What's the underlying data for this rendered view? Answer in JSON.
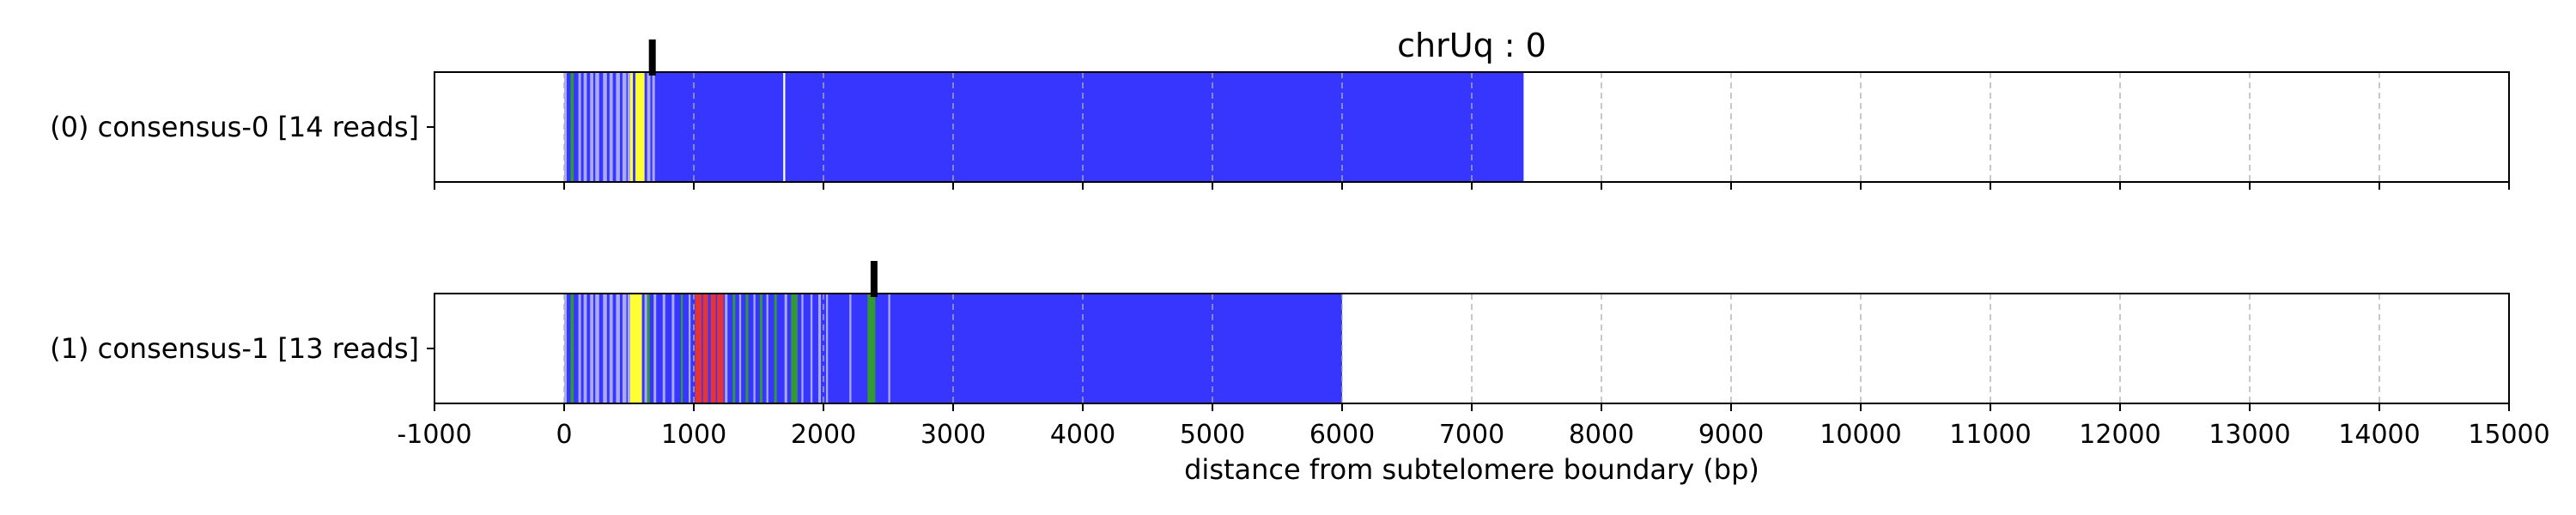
{
  "chart_data": {
    "type": "bar",
    "title": "chrUq : 0",
    "xlabel": "distance from subtelomere boundary (bp)",
    "ylabel": "",
    "xlim": [
      -1000,
      15000
    ],
    "x_ticks": [
      -1000,
      0,
      1000,
      2000,
      3000,
      4000,
      5000,
      6000,
      7000,
      8000,
      9000,
      10000,
      11000,
      12000,
      13000,
      14000,
      15000
    ],
    "x_tick_labels": [
      "-1000",
      "0",
      "1000",
      "2000",
      "3000",
      "4000",
      "5000",
      "6000",
      "7000",
      "8000",
      "9000",
      "10000",
      "11000",
      "12000",
      "13000",
      "14000",
      "15000"
    ],
    "grid": "vertical dashed",
    "colors": {
      "blue": "#3636ff",
      "light": "#a9a9ff",
      "yellow": "#ffff33",
      "red": "#e63333",
      "green": "#339933",
      "white": "#ffffff",
      "marker": "#000000"
    },
    "tracks": [
      {
        "label": "(0) consensus-0 [14 reads]",
        "start": 0,
        "end": 7400,
        "marker_bp": 680,
        "segments": [
          {
            "start": 0,
            "end": 20,
            "color": "light"
          },
          {
            "start": 20,
            "end": 50,
            "color": "blue"
          },
          {
            "start": 50,
            "end": 75,
            "color": "green"
          },
          {
            "start": 75,
            "end": 110,
            "color": "blue"
          },
          {
            "start": 110,
            "end": 130,
            "color": "light"
          },
          {
            "start": 150,
            "end": 175,
            "color": "light"
          },
          {
            "start": 200,
            "end": 225,
            "color": "light"
          },
          {
            "start": 240,
            "end": 270,
            "color": "light"
          },
          {
            "start": 300,
            "end": 330,
            "color": "light"
          },
          {
            "start": 350,
            "end": 375,
            "color": "light"
          },
          {
            "start": 400,
            "end": 430,
            "color": "light"
          },
          {
            "start": 450,
            "end": 480,
            "color": "light"
          },
          {
            "start": 490,
            "end": 510,
            "color": "light"
          },
          {
            "start": 510,
            "end": 530,
            "color": "yellow"
          },
          {
            "start": 550,
            "end": 620,
            "color": "yellow"
          },
          {
            "start": 640,
            "end": 665,
            "color": "light"
          },
          {
            "start": 680,
            "end": 700,
            "color": "light"
          },
          {
            "start": 1690,
            "end": 1705,
            "color": "white"
          }
        ]
      },
      {
        "label": "(1) consensus-1 [13 reads]",
        "start": 0,
        "end": 6000,
        "marker_bp": 2390,
        "segments": [
          {
            "start": 0,
            "end": 20,
            "color": "light"
          },
          {
            "start": 20,
            "end": 50,
            "color": "blue"
          },
          {
            "start": 50,
            "end": 75,
            "color": "green"
          },
          {
            "start": 75,
            "end": 110,
            "color": "blue"
          },
          {
            "start": 110,
            "end": 130,
            "color": "light"
          },
          {
            "start": 150,
            "end": 175,
            "color": "light"
          },
          {
            "start": 200,
            "end": 225,
            "color": "light"
          },
          {
            "start": 240,
            "end": 270,
            "color": "light"
          },
          {
            "start": 300,
            "end": 330,
            "color": "light"
          },
          {
            "start": 350,
            "end": 375,
            "color": "light"
          },
          {
            "start": 400,
            "end": 430,
            "color": "light"
          },
          {
            "start": 450,
            "end": 480,
            "color": "light"
          },
          {
            "start": 490,
            "end": 510,
            "color": "light"
          },
          {
            "start": 510,
            "end": 600,
            "color": "yellow"
          },
          {
            "start": 620,
            "end": 640,
            "color": "light"
          },
          {
            "start": 640,
            "end": 660,
            "color": "green"
          },
          {
            "start": 690,
            "end": 710,
            "color": "light"
          },
          {
            "start": 760,
            "end": 780,
            "color": "light"
          },
          {
            "start": 830,
            "end": 850,
            "color": "light"
          },
          {
            "start": 900,
            "end": 915,
            "color": "green"
          },
          {
            "start": 960,
            "end": 975,
            "color": "light"
          },
          {
            "start": 1010,
            "end": 1060,
            "color": "red"
          },
          {
            "start": 1070,
            "end": 1110,
            "color": "red"
          },
          {
            "start": 1130,
            "end": 1170,
            "color": "red"
          },
          {
            "start": 1180,
            "end": 1230,
            "color": "red"
          },
          {
            "start": 1240,
            "end": 1260,
            "color": "light"
          },
          {
            "start": 1300,
            "end": 1320,
            "color": "green"
          },
          {
            "start": 1350,
            "end": 1365,
            "color": "light"
          },
          {
            "start": 1400,
            "end": 1420,
            "color": "green"
          },
          {
            "start": 1460,
            "end": 1475,
            "color": "light"
          },
          {
            "start": 1510,
            "end": 1530,
            "color": "green"
          },
          {
            "start": 1560,
            "end": 1575,
            "color": "light"
          },
          {
            "start": 1620,
            "end": 1640,
            "color": "green"
          },
          {
            "start": 1700,
            "end": 1720,
            "color": "light"
          },
          {
            "start": 1750,
            "end": 1800,
            "color": "green"
          },
          {
            "start": 1830,
            "end": 1845,
            "color": "light"
          },
          {
            "start": 1900,
            "end": 1915,
            "color": "light"
          },
          {
            "start": 1960,
            "end": 1980,
            "color": "light"
          },
          {
            "start": 2020,
            "end": 2035,
            "color": "light"
          },
          {
            "start": 2200,
            "end": 2215,
            "color": "light"
          },
          {
            "start": 2340,
            "end": 2400,
            "color": "green"
          },
          {
            "start": 2500,
            "end": 2515,
            "color": "light"
          }
        ]
      }
    ]
  }
}
